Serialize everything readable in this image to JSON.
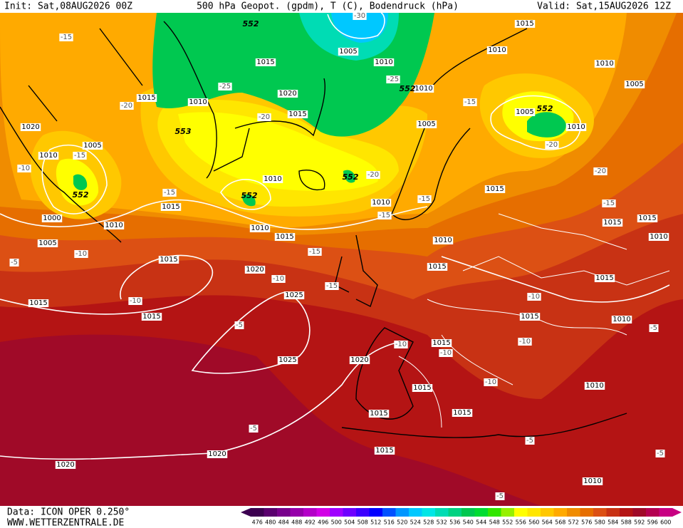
{
  "header": {
    "init": "Init: Sat,08AUG2026 00Z",
    "title": "500 hPa Geopot. (gpdm), T (C), Bodendruck (hPa)",
    "valid": "Valid: Sat,15AUG2026 12Z"
  },
  "footer": {
    "data": "Data: ICON OPER 0.250°",
    "site": "WWW.WETTERZENTRALE.DE"
  },
  "legend": {
    "levels": [
      476,
      480,
      484,
      488,
      492,
      496,
      500,
      504,
      508,
      512,
      516,
      520,
      524,
      528,
      532,
      536,
      540,
      544,
      548,
      552,
      556,
      560,
      564,
      568,
      572,
      576,
      580,
      584,
      588,
      592,
      596,
      600
    ],
    "colors": [
      "#3c0050",
      "#5a006e",
      "#78008c",
      "#9600aa",
      "#b400c8",
      "#d200e6",
      "#a000ff",
      "#6e00ff",
      "#3c00ff",
      "#0000ff",
      "#0050ff",
      "#0096ff",
      "#00c8ff",
      "#00e6e6",
      "#00dcb4",
      "#00d282",
      "#00c850",
      "#00dc32",
      "#32e600",
      "#96f000",
      "#ffff00",
      "#ffe600",
      "#ffc800",
      "#ffaa00",
      "#f08c00",
      "#e66e00",
      "#dc5014",
      "#c83214",
      "#b41414",
      "#a00a28",
      "#b40050",
      "#c80082"
    ]
  },
  "map_labels": {
    "pressure": [
      "1015",
      "1010",
      "1010",
      "1005",
      "1005",
      "1010",
      "1015",
      "1020",
      "1010",
      "1015",
      "1020",
      "1005",
      "1010",
      "1000",
      "1010",
      "1005",
      "1015",
      "1010",
      "1010",
      "1015",
      "1015",
      "1020",
      "1025",
      "1015",
      "1015",
      "1025",
      "1020",
      "1015",
      "1005",
      "1010",
      "1010",
      "1015",
      "1005",
      "1010",
      "1015",
      "1010",
      "1015",
      "1015",
      "1010",
      "1015",
      "1015",
      "1015",
      "1015",
      "1010",
      "1010",
      "1020",
      "1020",
      "1015",
      "1010",
      "1015",
      "1015"
    ],
    "temperature": [
      "-15",
      "-20",
      "-15",
      "-10",
      "-15",
      "-10",
      "-5",
      "-10",
      "-10",
      "-15",
      "-15",
      "-15",
      "-15",
      "-20",
      "-25",
      "-25",
      "-20",
      "-15",
      "-20",
      "-20",
      "-15",
      "-10",
      "-10",
      "-10",
      "-10",
      "-10",
      "-5",
      "-5",
      "-5",
      "-5",
      "-5",
      "-5",
      "-30"
    ],
    "geopotential": [
      "552",
      "552",
      "552",
      "552",
      "552",
      "552",
      "553"
    ]
  }
}
